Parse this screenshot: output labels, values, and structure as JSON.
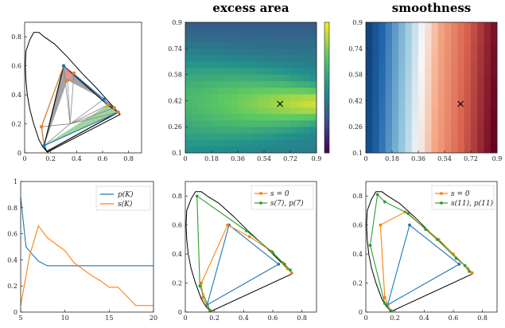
{
  "figure": {
    "panels": [
      {
        "id": "gamut-polygons",
        "title": ""
      },
      {
        "id": "excess-area",
        "title": "excess area"
      },
      {
        "id": "smoothness",
        "title": "smoothness"
      },
      {
        "id": "p-s-vs-K",
        "title": ""
      },
      {
        "id": "polygon-s7",
        "title": ""
      },
      {
        "id": "polygon-s11",
        "title": ""
      }
    ]
  },
  "chart_data": [
    {
      "type": "line",
      "panel": "gamut-polygons",
      "xlim": [
        0,
        0.9
      ],
      "ylim": [
        0,
        0.9
      ],
      "x_ticks": [
        "0",
        "0.2",
        "0.4",
        "0.6",
        "0.8"
      ],
      "y_ticks": [
        "0",
        "0.2",
        "0.4",
        "0.6",
        "0.8"
      ],
      "locus": [
        [
          0.175,
          0.005
        ],
        [
          0.16,
          0.02
        ],
        [
          0.14,
          0.04
        ],
        [
          0.11,
          0.09
        ],
        [
          0.07,
          0.2
        ],
        [
          0.04,
          0.3
        ],
        [
          0.02,
          0.4
        ],
        [
          0.01,
          0.5
        ],
        [
          0.005,
          0.6
        ],
        [
          0.01,
          0.7
        ],
        [
          0.04,
          0.78
        ],
        [
          0.07,
          0.83
        ],
        [
          0.11,
          0.83
        ],
        [
          0.15,
          0.8
        ],
        [
          0.23,
          0.75
        ],
        [
          0.33,
          0.66
        ],
        [
          0.44,
          0.55
        ],
        [
          0.55,
          0.45
        ],
        [
          0.64,
          0.36
        ],
        [
          0.735,
          0.265
        ]
      ],
      "spectral_gamut": [
        [
          0.17,
          0.01
        ],
        [
          0.15,
          0.05
        ],
        [
          0.3,
          0.6
        ],
        [
          0.64,
          0.33
        ],
        [
          0.72,
          0.28
        ]
      ],
      "fan_center": [
        0.35,
        0.2
      ],
      "fan_spokes": [
        [
          0.15,
          0.05
        ],
        [
          0.13,
          0.18
        ],
        [
          0.3,
          0.6
        ],
        [
          0.33,
          0.5
        ],
        [
          0.38,
          0.55
        ],
        [
          0.61,
          0.37
        ],
        [
          0.64,
          0.33
        ],
        [
          0.69,
          0.31
        ],
        [
          0.72,
          0.28
        ]
      ],
      "outer_polygon": [
        [
          0.15,
          0.05
        ],
        [
          0.13,
          0.18
        ],
        [
          0.3,
          0.6
        ],
        [
          0.61,
          0.37
        ],
        [
          0.72,
          0.28
        ]
      ],
      "mid_points": [
        [
          0.33,
          0.5
        ],
        [
          0.38,
          0.55
        ],
        [
          0.64,
          0.33
        ],
        [
          0.69,
          0.31
        ]
      ],
      "fills": [
        {
          "color": "#a3a3a3",
          "points": [
            [
              0.15,
              0.05
            ],
            [
              0.3,
              0.6
            ],
            [
              0.33,
              0.5
            ]
          ]
        },
        {
          "color": "#f08c8c",
          "points": [
            [
              0.3,
              0.6
            ],
            [
              0.38,
              0.55
            ],
            [
              0.33,
              0.5
            ]
          ]
        },
        {
          "color": "#a3a3a3",
          "points": [
            [
              0.33,
              0.5
            ],
            [
              0.38,
              0.55
            ],
            [
              0.61,
              0.37
            ]
          ]
        },
        {
          "color": "#9dd39d",
          "points": [
            [
              0.15,
              0.05
            ],
            [
              0.72,
              0.28
            ],
            [
              0.69,
              0.31
            ]
          ]
        },
        {
          "color": "#9dd39d",
          "points": [
            [
              0.15,
              0.05
            ],
            [
              0.69,
              0.31
            ],
            [
              0.64,
              0.33
            ]
          ]
        }
      ],
      "colors": {
        "locus": "#000000",
        "blue": "#1f77b4",
        "orange": "#ff7f0e",
        "green": "#2ca02c",
        "spoke": "#888888"
      }
    },
    {
      "type": "heatmap",
      "panel": "excess-area",
      "title": "excess area",
      "xlim": [
        0,
        0.9
      ],
      "ylim": [
        0.1,
        0.9
      ],
      "x_ticks": [
        "0",
        "0.18",
        "0.36",
        "0.54",
        "0.72",
        "0.9"
      ],
      "y_ticks": [
        "0.1",
        "0.26",
        "0.42",
        "0.58",
        "0.74",
        "0.9"
      ],
      "grid": [
        20,
        20
      ],
      "colormap": "viridis",
      "optimum_marker": [
        0.65,
        0.4
      ],
      "colorbar": true
    },
    {
      "type": "heatmap",
      "panel": "smoothness",
      "title": "smoothness",
      "xlim": [
        0,
        0.9
      ],
      "ylim": [
        0.1,
        0.9
      ],
      "x_ticks": [
        "0",
        "0.18",
        "0.36",
        "0.54",
        "0.72",
        "0.9"
      ],
      "y_ticks": [
        "0.1",
        "0.26",
        "0.42",
        "0.58",
        "0.74",
        "0.9"
      ],
      "grid": [
        20,
        20
      ],
      "colormap": "RdBu_r",
      "optimum_marker": [
        0.65,
        0.4
      ]
    },
    {
      "type": "line",
      "panel": "p-s-vs-K",
      "xlim": [
        5,
        20
      ],
      "ylim": [
        0,
        1
      ],
      "x_ticks": [
        "5",
        "10",
        "15",
        "20"
      ],
      "y_ticks": [
        "0",
        "0.2",
        "0.4",
        "0.6",
        "0.8",
        "1"
      ],
      "series": [
        {
          "name": "p(K)",
          "color": "#1f77b4",
          "x": [
            5,
            5.6,
            6.2,
            7,
            8,
            9,
            10,
            11,
            12,
            13,
            14,
            15,
            16,
            17,
            18,
            19,
            20
          ],
          "y": [
            0.88,
            0.5,
            0.45,
            0.39,
            0.355,
            0.355,
            0.355,
            0.355,
            0.355,
            0.355,
            0.355,
            0.355,
            0.355,
            0.355,
            0.355,
            0.355,
            0.355
          ]
        },
        {
          "name": "s(K)",
          "color": "#ff7f0e",
          "x": [
            5,
            6,
            7,
            8,
            9,
            10,
            11,
            12,
            13,
            14,
            15,
            16,
            17,
            18,
            19,
            20
          ],
          "y": [
            0.05,
            0.43,
            0.66,
            0.57,
            0.52,
            0.47,
            0.38,
            0.33,
            0.28,
            0.24,
            0.19,
            0.19,
            0.12,
            0.05,
            0.05,
            0.05
          ]
        }
      ]
    },
    {
      "type": "line",
      "panel": "polygon-s7",
      "xlim": [
        0,
        0.9
      ],
      "ylim": [
        0,
        0.9
      ],
      "x_ticks": [
        "0",
        "0.2",
        "0.4",
        "0.6",
        "0.8"
      ],
      "y_ticks": [
        "0",
        "0.2",
        "0.4",
        "0.6",
        "0.8"
      ],
      "legend_position": "top-right",
      "series": [
        {
          "name": "s = 0",
          "color": "#ff7f0e",
          "points": [
            [
              0.17,
              0.01
            ],
            [
              0.12,
              0.1
            ],
            [
              0.11,
              0.2
            ],
            [
              0.29,
              0.6
            ],
            [
              0.44,
              0.52
            ],
            [
              0.59,
              0.42
            ],
            [
              0.67,
              0.34
            ],
            [
              0.7,
              0.3
            ],
            [
              0.73,
              0.27
            ]
          ]
        },
        {
          "name": "s(7), p(7)",
          "color": "#2ca02c",
          "points": [
            [
              0.17,
              0.01
            ],
            [
              0.1,
              0.18
            ],
            [
              0.08,
              0.8
            ],
            [
              0.42,
              0.56
            ],
            [
              0.6,
              0.41
            ],
            [
              0.68,
              0.33
            ],
            [
              0.72,
              0.29
            ]
          ]
        },
        {
          "name": "",
          "color": "#1f77b4",
          "points": [
            [
              0.15,
              0.05
            ],
            [
              0.3,
              0.6
            ],
            [
              0.64,
              0.33
            ],
            [
              0.15,
              0.05
            ]
          ]
        }
      ],
      "locus": "same as panel gamut-polygons"
    },
    {
      "type": "line",
      "panel": "polygon-s11",
      "xlim": [
        0,
        0.9
      ],
      "ylim": [
        0,
        0.9
      ],
      "x_ticks": [
        "0",
        "0.2",
        "0.4",
        "0.6",
        "0.8"
      ],
      "y_ticks": [
        "0",
        "0.2",
        "0.4",
        "0.6",
        "0.8"
      ],
      "legend_position": "top-right",
      "series": [
        {
          "name": "s = 0",
          "color": "#ff7f0e",
          "points": [
            [
              0.17,
              0.01
            ],
            [
              0.13,
              0.1
            ],
            [
              0.1,
              0.6
            ],
            [
              0.27,
              0.69
            ],
            [
              0.5,
              0.5
            ],
            [
              0.6,
              0.4
            ],
            [
              0.7,
              0.3
            ],
            [
              0.73,
              0.27
            ]
          ]
        },
        {
          "name": "s(11), p(11)",
          "color": "#2ca02c",
          "points": [
            [
              0.17,
              0.01
            ],
            [
              0.13,
              0.06
            ],
            [
              0.03,
              0.46
            ],
            [
              0.08,
              0.81
            ],
            [
              0.13,
              0.76
            ],
            [
              0.29,
              0.68
            ],
            [
              0.41,
              0.57
            ],
            [
              0.49,
              0.5
            ],
            [
              0.62,
              0.37
            ],
            [
              0.68,
              0.32
            ],
            [
              0.71,
              0.28
            ]
          ]
        },
        {
          "name": "",
          "color": "#1f77b4",
          "points": [
            [
              0.15,
              0.05
            ],
            [
              0.3,
              0.6
            ],
            [
              0.64,
              0.33
            ],
            [
              0.15,
              0.05
            ]
          ]
        }
      ],
      "locus": "same as panel gamut-polygons"
    }
  ]
}
